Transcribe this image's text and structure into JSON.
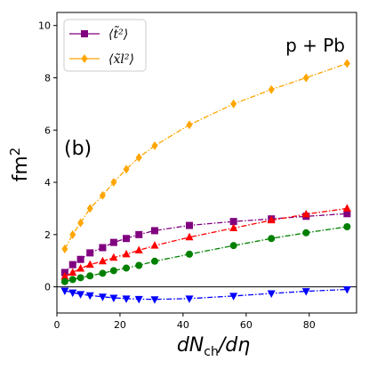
{
  "chart_data": {
    "type": "line",
    "xlabel_main": "dN",
    "xlabel_sub": "ch",
    "xlabel_tail": "/dη",
    "ylabel_main": "fm",
    "ylabel_sup": "2",
    "panel_label": "(b)",
    "system_label": "p + Pb",
    "xlim": [
      0,
      95
    ],
    "ylim": [
      -1,
      10.5
    ],
    "x_ticks": [
      0,
      20,
      40,
      60,
      80
    ],
    "y_ticks": [
      0,
      2,
      4,
      6,
      8,
      10
    ],
    "zero_line": true,
    "legend_position": "top-left",
    "legend": [
      {
        "text": "⟨t̃²⟩",
        "series": 0
      },
      {
        "text": "⟨x̃l²⟩",
        "series": 1
      }
    ],
    "series": [
      {
        "color": "#800080",
        "marker": "square",
        "linestyle": "dash-dot",
        "x": [
          2.5,
          5,
          7.5,
          10.5,
          14.5,
          18,
          22,
          26,
          31,
          42,
          56,
          68,
          79,
          92
        ],
        "y": [
          0.55,
          0.85,
          1.05,
          1.3,
          1.5,
          1.7,
          1.85,
          2.0,
          2.15,
          2.35,
          2.5,
          2.6,
          2.7,
          2.8
        ]
      },
      {
        "color": "#FFA500",
        "marker": "diamond",
        "linestyle": "dash-dot",
        "x": [
          2.5,
          5,
          7.5,
          10.5,
          14.5,
          18,
          22,
          26,
          31,
          42,
          56,
          68,
          79,
          92
        ],
        "y": [
          1.45,
          2.0,
          2.45,
          3.0,
          3.5,
          4.0,
          4.5,
          4.95,
          5.4,
          6.2,
          7.0,
          7.55,
          8.0,
          8.55
        ]
      },
      {
        "color": "#FF0000",
        "marker": "triangle-up",
        "linestyle": "dash-dot",
        "x": [
          2.5,
          5,
          7.5,
          10.5,
          14.5,
          18,
          22,
          26,
          31,
          42,
          56,
          68,
          79,
          92
        ],
        "y": [
          0.4,
          0.55,
          0.7,
          0.85,
          0.98,
          1.12,
          1.25,
          1.4,
          1.58,
          1.9,
          2.25,
          2.55,
          2.78,
          3.0
        ]
      },
      {
        "color": "#008000",
        "marker": "circle",
        "linestyle": "dash-dot",
        "x": [
          2.5,
          5,
          7.5,
          10.5,
          14.5,
          18,
          22,
          26,
          31,
          42,
          56,
          68,
          79,
          92
        ],
        "y": [
          0.2,
          0.28,
          0.35,
          0.42,
          0.52,
          0.62,
          0.72,
          0.82,
          0.98,
          1.25,
          1.58,
          1.85,
          2.07,
          2.3
        ]
      },
      {
        "color": "#0000FF",
        "marker": "triangle-down",
        "linestyle": "dash-dot",
        "x": [
          2.5,
          5,
          7.5,
          10.5,
          14.5,
          18,
          22,
          26,
          31,
          42,
          56,
          68,
          79,
          92
        ],
        "y": [
          -0.15,
          -0.22,
          -0.28,
          -0.33,
          -0.38,
          -0.42,
          -0.45,
          -0.47,
          -0.48,
          -0.45,
          -0.35,
          -0.25,
          -0.17,
          -0.1
        ]
      }
    ]
  }
}
